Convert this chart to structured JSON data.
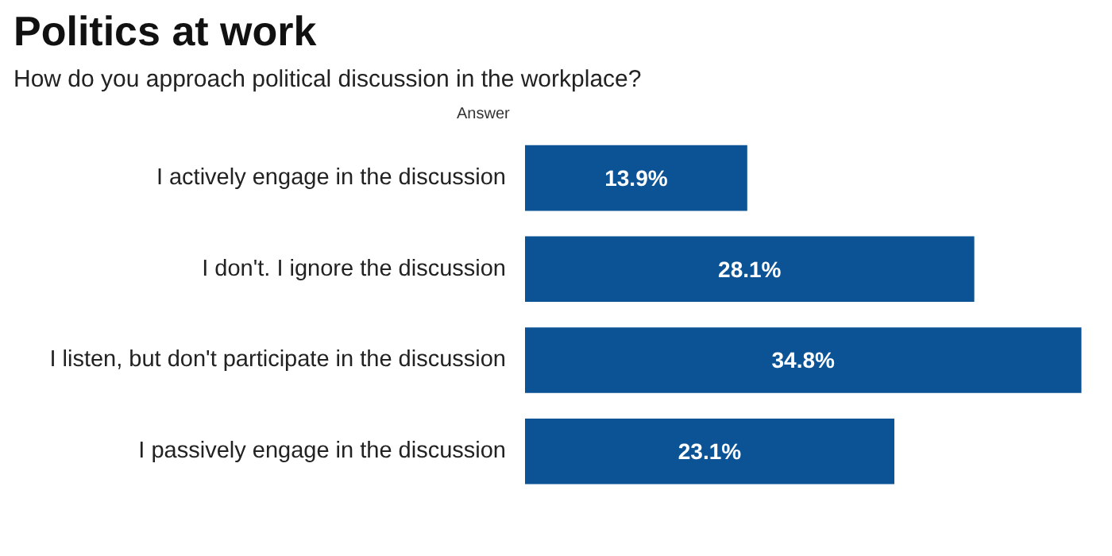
{
  "chart_data": {
    "type": "bar",
    "orientation": "horizontal",
    "title": "Politics at work",
    "subtitle": "How do you approach political discussion in the workplace?",
    "ylabel": "Answer",
    "categories": [
      "I actively engage in the discussion",
      "I don't. I ignore the discussion",
      "I listen, but don't participate in the discussion",
      "I passively engage in the discussion"
    ],
    "values": [
      13.9,
      28.1,
      34.8,
      23.1
    ],
    "value_labels": [
      "13.9%",
      "28.1%",
      "34.8%",
      "23.1%"
    ],
    "color": "#0b5394",
    "grid": false
  }
}
